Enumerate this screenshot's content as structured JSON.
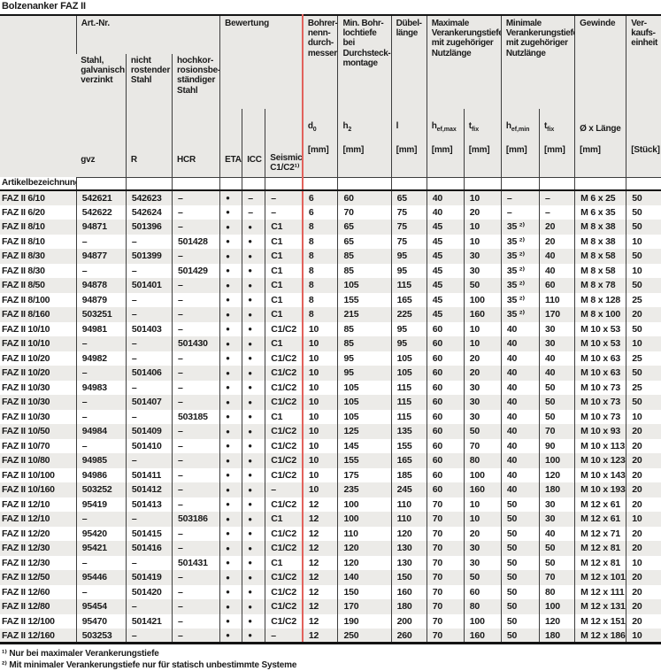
{
  "title": "Bolzenanker FAZ II",
  "accent_color": "#e2625c",
  "header": {
    "artnr_group": "Art.-Nr.",
    "bewertung_group": "Bewertung",
    "steel_gvz": "Stahl,\ngalvanisch\nverzinkt",
    "steel_r": "nicht\nrostender\nStahl",
    "steel_hcr": "hochkor-\nrosionsbe-\nständiger\nStahl",
    "bohrer": "Bohrer-\nnenn-\ndurch-\nmesser",
    "min_bohrloch": "Min. Bohr-\nlochtiefe bei\nDurchsteck-\nmontage",
    "duebellaenge": "Dübel-\nlänge",
    "max_verankerung": "Maximale\nVerankerungstiefe\nmit zugehöriger\nNutzlänge",
    "min_verankerung": "Minimale\nVerankerungstiefe\nmit zugehöriger\nNutzlänge",
    "gewinde": "Gewinde",
    "verkaufseinheit": "Ver-\nkaufs-\neinheit",
    "sub": {
      "gvz": "gvz",
      "r": "R",
      "hcr": "HCR",
      "eta": "ETA",
      "icc": "ICC",
      "seismic": "Seismic\nC1/C2¹⁾",
      "d0": {
        "base": "d",
        "sub": "0",
        "unit": "[mm]"
      },
      "h2": {
        "base": "h",
        "sub": "2",
        "unit": "[mm]"
      },
      "l": {
        "base": "l",
        "sub": "",
        "unit": "[mm]"
      },
      "hef_max": {
        "base": "h",
        "sub": "ef,max",
        "unit": "[mm]"
      },
      "t_fix_max": {
        "base": "t",
        "sub": "fix",
        "unit": "[mm]"
      },
      "hef_min": {
        "base": "h",
        "sub": "ef,min",
        "unit": "[mm]"
      },
      "t_fix_min": {
        "base": "t",
        "sub": "fix",
        "unit": "[mm]"
      },
      "gewinde_dim": {
        "base": "Ø x Länge",
        "sub": "",
        "unit": "[mm]"
      },
      "stueck": {
        "base": "",
        "sub": "",
        "unit": "[Stück]"
      }
    },
    "article_label": "Artikelbezeichnung"
  },
  "table": {
    "columns": [
      "name",
      "gvz",
      "r",
      "hcr",
      "eta",
      "icc",
      "seismic",
      "d0",
      "h2",
      "l",
      "hef_max",
      "t_fix_max",
      "hef_min",
      "t_fix_min",
      "gewinde",
      "ve"
    ],
    "rows": [
      [
        "FAZ II 6/10",
        "542621",
        "542623",
        "–",
        "●",
        "–",
        "–",
        "6",
        "60",
        "65",
        "40",
        "10",
        "–",
        "–",
        "M 6 x 25",
        "50"
      ],
      [
        "FAZ II 6/20",
        "542622",
        "542624",
        "–",
        "●",
        "–",
        "–",
        "6",
        "70",
        "75",
        "40",
        "20",
        "–",
        "–",
        "M 6 x 35",
        "50"
      ],
      [
        "FAZ II 8/10",
        "94871",
        "501396",
        "–",
        "●",
        "●",
        "C1",
        "8",
        "65",
        "75",
        "45",
        "10",
        "35 ²⁾",
        "20",
        "M 8 x 38",
        "50"
      ],
      [
        "FAZ II 8/10",
        "–",
        "–",
        "501428",
        "●",
        "●",
        "C1",
        "8",
        "65",
        "75",
        "45",
        "10",
        "35 ²⁾",
        "20",
        "M 8 x 38",
        "10"
      ],
      [
        "FAZ II 8/30",
        "94877",
        "501399",
        "–",
        "●",
        "●",
        "C1",
        "8",
        "85",
        "95",
        "45",
        "30",
        "35 ²⁾",
        "40",
        "M 8 x 58",
        "50"
      ],
      [
        "FAZ II 8/30",
        "–",
        "–",
        "501429",
        "●",
        "●",
        "C1",
        "8",
        "85",
        "95",
        "45",
        "30",
        "35 ²⁾",
        "40",
        "M 8 x 58",
        "10"
      ],
      [
        "FAZ II 8/50",
        "94878",
        "501401",
        "–",
        "●",
        "●",
        "C1",
        "8",
        "105",
        "115",
        "45",
        "50",
        "35 ²⁾",
        "60",
        "M 8 x 78",
        "50"
      ],
      [
        "FAZ II 8/100",
        "94879",
        "–",
        "–",
        "●",
        "●",
        "C1",
        "8",
        "155",
        "165",
        "45",
        "100",
        "35 ²⁾",
        "110",
        "M 8 x 128",
        "25"
      ],
      [
        "FAZ II 8/160",
        "503251",
        "–",
        "–",
        "●",
        "●",
        "C1",
        "8",
        "215",
        "225",
        "45",
        "160",
        "35 ²⁾",
        "170",
        "M 8 x 100",
        "20"
      ],
      [
        "FAZ II 10/10",
        "94981",
        "501403",
        "–",
        "●",
        "●",
        "C1/C2",
        "10",
        "85",
        "95",
        "60",
        "10",
        "40",
        "30",
        "M 10 x 53",
        "50"
      ],
      [
        "FAZ II 10/10",
        "–",
        "–",
        "501430",
        "●",
        "●",
        "C1",
        "10",
        "85",
        "95",
        "60",
        "10",
        "40",
        "30",
        "M 10 x 53",
        "10"
      ],
      [
        "FAZ II 10/20",
        "94982",
        "–",
        "–",
        "●",
        "●",
        "C1/C2",
        "10",
        "95",
        "105",
        "60",
        "20",
        "40",
        "40",
        "M 10 x 63",
        "25"
      ],
      [
        "FAZ II 10/20",
        "–",
        "501406",
        "–",
        "●",
        "●",
        "C1/C2",
        "10",
        "95",
        "105",
        "60",
        "20",
        "40",
        "40",
        "M 10 x 63",
        "50"
      ],
      [
        "FAZ II 10/30",
        "94983",
        "–",
        "–",
        "●",
        "●",
        "C1/C2",
        "10",
        "105",
        "115",
        "60",
        "30",
        "40",
        "50",
        "M 10 x 73",
        "25"
      ],
      [
        "FAZ II 10/30",
        "–",
        "501407",
        "–",
        "●",
        "●",
        "C1/C2",
        "10",
        "105",
        "115",
        "60",
        "30",
        "40",
        "50",
        "M 10 x 73",
        "50"
      ],
      [
        "FAZ II 10/30",
        "–",
        "–",
        "503185",
        "●",
        "●",
        "C1",
        "10",
        "105",
        "115",
        "60",
        "30",
        "40",
        "50",
        "M 10 x 73",
        "10"
      ],
      [
        "FAZ II 10/50",
        "94984",
        "501409",
        "–",
        "●",
        "●",
        "C1/C2",
        "10",
        "125",
        "135",
        "60",
        "50",
        "40",
        "70",
        "M 10 x 93",
        "20"
      ],
      [
        "FAZ II 10/70",
        "–",
        "501410",
        "–",
        "●",
        "●",
        "C1/C2",
        "10",
        "145",
        "155",
        "60",
        "70",
        "40",
        "90",
        "M 10 x 113",
        "20"
      ],
      [
        "FAZ II 10/80",
        "94985",
        "–",
        "–",
        "●",
        "●",
        "C1/C2",
        "10",
        "155",
        "165",
        "60",
        "80",
        "40",
        "100",
        "M 10 x 123",
        "20"
      ],
      [
        "FAZ II 10/100",
        "94986",
        "501411",
        "–",
        "●",
        "●",
        "C1/C2",
        "10",
        "175",
        "185",
        "60",
        "100",
        "40",
        "120",
        "M 10 x 143",
        "20"
      ],
      [
        "FAZ II 10/160",
        "503252",
        "501412",
        "–",
        "●",
        "●",
        "–",
        "10",
        "235",
        "245",
        "60",
        "160",
        "40",
        "180",
        "M 10 x 193",
        "20"
      ],
      [
        "FAZ II 12/10",
        "95419",
        "501413",
        "–",
        "●",
        "●",
        "C1/C2",
        "12",
        "100",
        "110",
        "70",
        "10",
        "50",
        "30",
        "M 12 x 61",
        "20"
      ],
      [
        "FAZ II 12/10",
        "–",
        "–",
        "503186",
        "●",
        "●",
        "C1",
        "12",
        "100",
        "110",
        "70",
        "10",
        "50",
        "30",
        "M 12 x 61",
        "10"
      ],
      [
        "FAZ II 12/20",
        "95420",
        "501415",
        "–",
        "●",
        "●",
        "C1/C2",
        "12",
        "110",
        "120",
        "70",
        "20",
        "50",
        "40",
        "M 12 x 71",
        "20"
      ],
      [
        "FAZ II 12/30",
        "95421",
        "501416",
        "–",
        "●",
        "●",
        "C1/C2",
        "12",
        "120",
        "130",
        "70",
        "30",
        "50",
        "50",
        "M 12 x 81",
        "20"
      ],
      [
        "FAZ II 12/30",
        "–",
        "–",
        "501431",
        "●",
        "●",
        "C1",
        "12",
        "120",
        "130",
        "70",
        "30",
        "50",
        "50",
        "M 12 x 81",
        "10"
      ],
      [
        "FAZ II 12/50",
        "95446",
        "501419",
        "–",
        "●",
        "●",
        "C1/C2",
        "12",
        "140",
        "150",
        "70",
        "50",
        "50",
        "70",
        "M 12 x 101",
        "20"
      ],
      [
        "FAZ II 12/60",
        "–",
        "501420",
        "–",
        "●",
        "●",
        "C1/C2",
        "12",
        "150",
        "160",
        "70",
        "60",
        "50",
        "80",
        "M 12 x 111",
        "20"
      ],
      [
        "FAZ II 12/80",
        "95454",
        "–",
        "–",
        "●",
        "●",
        "C1/C2",
        "12",
        "170",
        "180",
        "70",
        "80",
        "50",
        "100",
        "M 12 x 131",
        "20"
      ],
      [
        "FAZ II 12/100",
        "95470",
        "501421",
        "–",
        "●",
        "●",
        "C1/C2",
        "12",
        "190",
        "200",
        "70",
        "100",
        "50",
        "120",
        "M 12 x 151",
        "20"
      ],
      [
        "FAZ II 12/160",
        "503253",
        "–",
        "–",
        "●",
        "●",
        "–",
        "12",
        "250",
        "260",
        "70",
        "160",
        "50",
        "180",
        "M 12 x 186",
        "10"
      ]
    ]
  },
  "footnotes": [
    "¹⁾ Nur bei maximaler Verankerungstiefe",
    "²⁾ Mit minimaler Verankerungstiefe nur für statisch unbestimmte Systeme"
  ]
}
